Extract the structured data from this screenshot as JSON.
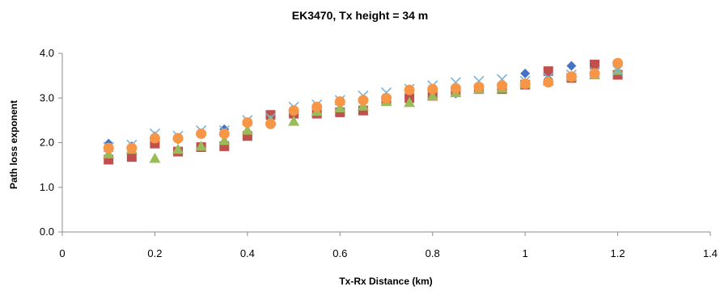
{
  "chart_data": {
    "type": "scatter",
    "title": "EK3470, Tx height = 34 m",
    "xlabel": "Tx-Rx Distance  (km)",
    "ylabel": "Path loss  exponent",
    "xlim": [
      0,
      1.4
    ],
    "ylim": [
      0,
      4.0
    ],
    "x_ticks": [
      "0",
      "0.2",
      "0.4",
      "0.6",
      "0.8",
      "1",
      "1.2",
      "1.4"
    ],
    "x_tick_values": [
      0,
      0.2,
      0.4,
      0.6,
      0.8,
      1.0,
      1.2,
      1.4
    ],
    "y_ticks": [
      "0.0",
      "1.0",
      "2.0",
      "3.0",
      "4.0"
    ],
    "y_tick_values": [
      0,
      1,
      2,
      3,
      4
    ],
    "grid": false,
    "legend": "none",
    "series": [
      {
        "marker": "diamond",
        "color": "#4472C4",
        "x": [
          0.1,
          0.15,
          0.2,
          0.25,
          0.3,
          0.35,
          0.4,
          0.45,
          0.5,
          0.55,
          0.6,
          0.65,
          0.7,
          0.75,
          0.8,
          0.85,
          0.9,
          0.95,
          1.0,
          1.05,
          1.1,
          1.15,
          1.2
        ],
        "y": [
          1.98,
          1.92,
          2.14,
          2.07,
          2.2,
          2.3,
          2.42,
          2.6,
          2.72,
          2.8,
          2.88,
          2.92,
          3.0,
          3.05,
          3.1,
          3.1,
          3.2,
          3.28,
          3.55,
          3.42,
          3.72,
          3.55,
          3.75
        ]
      },
      {
        "marker": "square",
        "color": "#C0504D",
        "x": [
          0.1,
          0.15,
          0.2,
          0.25,
          0.3,
          0.35,
          0.4,
          0.45,
          0.5,
          0.55,
          0.6,
          0.65,
          0.7,
          0.75,
          0.8,
          0.85,
          0.9,
          0.95,
          1.0,
          1.05,
          1.1,
          1.15,
          1.2
        ],
        "y": [
          1.62,
          1.68,
          1.98,
          1.8,
          1.9,
          1.92,
          2.15,
          2.62,
          2.65,
          2.65,
          2.68,
          2.72,
          2.95,
          3.0,
          3.05,
          3.15,
          3.2,
          3.2,
          3.3,
          3.6,
          3.45,
          3.75,
          3.52
        ]
      },
      {
        "marker": "triangle",
        "color": "#9BBB59",
        "x": [
          0.1,
          0.15,
          0.2,
          0.25,
          0.3,
          0.35,
          0.4,
          0.45,
          0.5,
          0.55,
          0.6,
          0.65,
          0.7,
          0.75,
          0.8,
          0.85,
          0.9,
          0.95,
          1.0,
          1.05,
          1.1,
          1.15,
          1.2
        ],
        "y": [
          1.75,
          1.85,
          1.65,
          1.85,
          1.92,
          2.05,
          2.28,
          2.5,
          2.48,
          2.7,
          2.78,
          2.82,
          2.92,
          2.9,
          3.05,
          3.12,
          3.2,
          3.22,
          3.32,
          3.38,
          3.48,
          3.52,
          3.62
        ]
      },
      {
        "marker": "x",
        "color": "#7DB2D6",
        "x": [
          0.1,
          0.15,
          0.2,
          0.25,
          0.3,
          0.35,
          0.4,
          0.45,
          0.5,
          0.55,
          0.6,
          0.65,
          0.7,
          0.75,
          0.8,
          0.85,
          0.9,
          0.95,
          1.0,
          1.05,
          1.1,
          1.15,
          1.2
        ],
        "y": [
          1.9,
          1.95,
          2.2,
          2.15,
          2.27,
          2.27,
          2.5,
          2.55,
          2.8,
          2.85,
          2.95,
          3.05,
          3.12,
          3.2,
          3.28,
          3.35,
          3.38,
          3.42,
          3.38,
          3.45,
          3.52,
          3.58,
          3.62
        ]
      },
      {
        "marker": "circle",
        "color": "#F79646",
        "x": [
          0.1,
          0.15,
          0.2,
          0.25,
          0.3,
          0.35,
          0.4,
          0.45,
          0.5,
          0.55,
          0.6,
          0.65,
          0.7,
          0.75,
          0.8,
          0.85,
          0.9,
          0.95,
          1.0,
          1.05,
          1.1,
          1.15,
          1.2
        ],
        "y": [
          1.88,
          1.88,
          2.1,
          2.1,
          2.2,
          2.2,
          2.45,
          2.42,
          2.72,
          2.8,
          2.92,
          2.95,
          3.0,
          3.18,
          3.2,
          3.22,
          3.25,
          3.28,
          3.32,
          3.35,
          3.48,
          3.55,
          3.78
        ]
      }
    ]
  }
}
